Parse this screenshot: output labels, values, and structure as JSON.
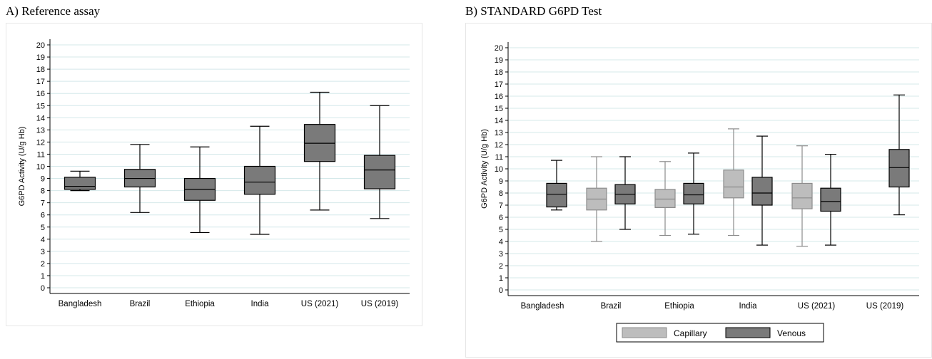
{
  "panels": [
    {
      "title": "A) Reference assay"
    },
    {
      "title": "B) STANDARD G6PD Test"
    }
  ],
  "colors": {
    "venous": "#7a7a7a",
    "venous_stroke": "#000000",
    "capillary": "#bdbdbd",
    "capillary_stroke": "#8c8c8c",
    "gridline": "#d4e8ea",
    "plot_border": "#e6e6e6"
  },
  "chart_data": [
    {
      "type": "boxplot",
      "title": "A) Reference assay",
      "ylabel": "G6PD Activity (U/g Hb)",
      "ylim": [
        0,
        20
      ],
      "yticks": [
        "0",
        "1",
        "2",
        "3",
        "4",
        "5",
        "6",
        "7",
        "8",
        "9",
        "10",
        "11",
        "12",
        "13",
        "14",
        "15",
        "16",
        "17",
        "18",
        "19",
        "20"
      ],
      "categories": [
        "Bangladesh",
        "Brazil",
        "Ethiopia",
        "India",
        "US (2021)",
        "US (2019)"
      ],
      "grid": true,
      "series": [
        {
          "boxes": [
            {
              "category": "Bangladesh",
              "min": 8.0,
              "q1": 8.1,
              "median": 8.35,
              "q3": 9.1,
              "max": 9.6
            },
            {
              "category": "Brazil",
              "min": 6.2,
              "q1": 8.3,
              "median": 9.0,
              "q3": 9.75,
              "max": 11.8
            },
            {
              "category": "Ethiopia",
              "min": 4.55,
              "q1": 7.2,
              "median": 8.1,
              "q3": 9.0,
              "max": 11.6
            },
            {
              "category": "India",
              "min": 4.4,
              "q1": 7.7,
              "median": 8.7,
              "q3": 10.0,
              "max": 13.3
            },
            {
              "category": "US (2021)",
              "min": 6.4,
              "q1": 10.4,
              "median": 11.9,
              "q3": 13.45,
              "max": 16.1
            },
            {
              "category": "US (2019)",
              "min": 5.7,
              "q1": 8.15,
              "median": 9.7,
              "q3": 10.9,
              "max": 15.0
            }
          ]
        }
      ]
    },
    {
      "type": "boxplot",
      "title": "B) STANDARD G6PD Test",
      "ylabel": "G6PD Activity (U/g Hb)",
      "ylim": [
        0,
        20
      ],
      "yticks": [
        "0",
        "1",
        "2",
        "3",
        "4",
        "5",
        "6",
        "7",
        "8",
        "9",
        "10",
        "11",
        "12",
        "13",
        "14",
        "15",
        "16",
        "17",
        "18",
        "19",
        "20"
      ],
      "categories": [
        "Bangladesh",
        "Brazil",
        "Ethiopia",
        "India",
        "US (2021)",
        "US (2019)"
      ],
      "grid": true,
      "legend": {
        "placement": "bottom"
      },
      "series": [
        {
          "name": "Capillary",
          "boxes": [
            {
              "category": "Brazil",
              "min": 4.0,
              "q1": 6.6,
              "median": 7.5,
              "q3": 8.4,
              "max": 11.0
            },
            {
              "category": "Ethiopia",
              "min": 4.5,
              "q1": 6.8,
              "median": 7.5,
              "q3": 8.3,
              "max": 10.6
            },
            {
              "category": "India",
              "min": 4.5,
              "q1": 7.6,
              "median": 8.5,
              "q3": 9.9,
              "max": 13.3
            },
            {
              "category": "US (2021)",
              "min": 3.6,
              "q1": 6.7,
              "median": 7.6,
              "q3": 8.8,
              "max": 11.9
            }
          ]
        },
        {
          "name": "Venous",
          "boxes": [
            {
              "category": "Bangladesh",
              "min": 6.6,
              "q1": 6.85,
              "median": 7.9,
              "q3": 8.8,
              "max": 10.7
            },
            {
              "category": "Brazil",
              "min": 5.0,
              "q1": 7.1,
              "median": 7.9,
              "q3": 8.7,
              "max": 11.0
            },
            {
              "category": "Ethiopia",
              "min": 4.6,
              "q1": 7.1,
              "median": 7.85,
              "q3": 8.8,
              "max": 11.3
            },
            {
              "category": "India",
              "min": 3.7,
              "q1": 7.0,
              "median": 8.0,
              "q3": 9.3,
              "max": 12.7
            },
            {
              "category": "US (2021)",
              "min": 3.7,
              "q1": 6.5,
              "median": 7.3,
              "q3": 8.4,
              "max": 11.2
            },
            {
              "category": "US (2019)",
              "min": 6.2,
              "q1": 8.5,
              "median": 10.1,
              "q3": 11.6,
              "max": 16.1
            }
          ]
        }
      ]
    }
  ]
}
